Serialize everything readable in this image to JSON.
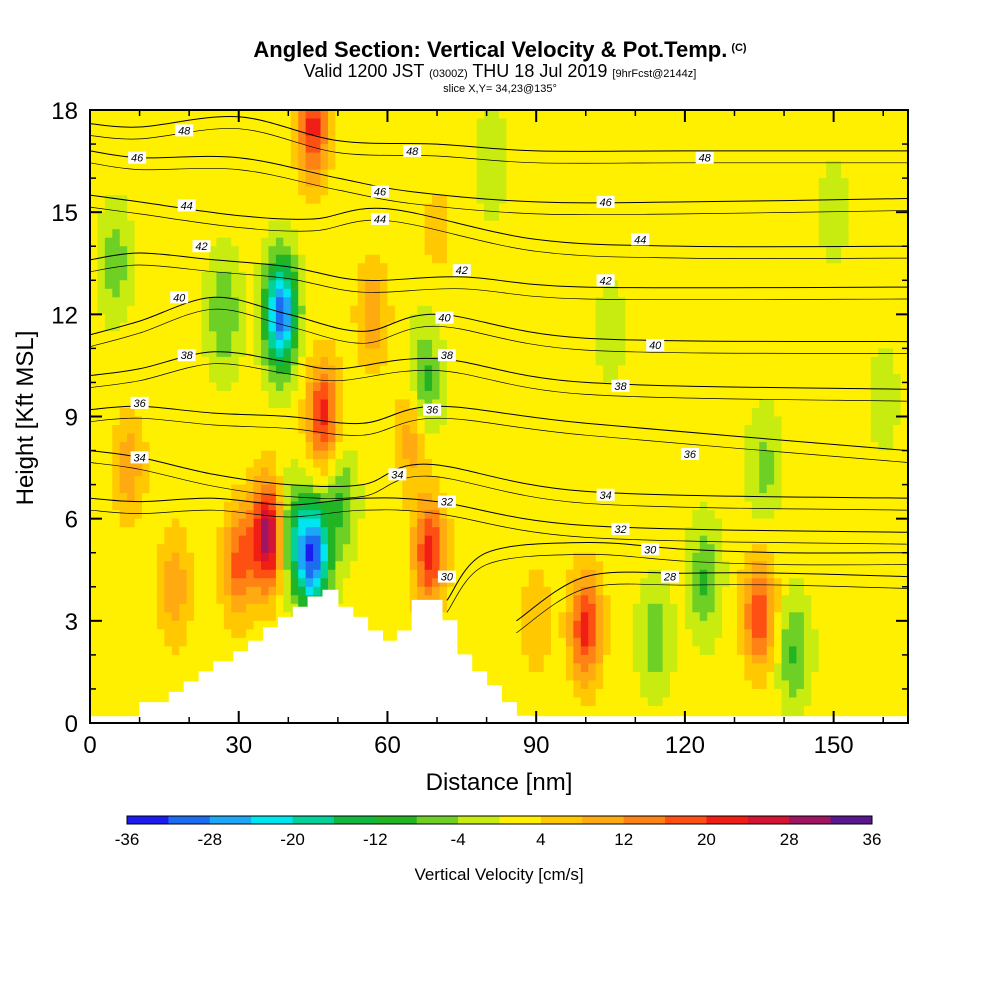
{
  "chart_data": {
    "type": "heatmap",
    "title": "Angled Section: Vertical Velocity & Pot.Temp.",
    "title_unit": "(C)",
    "subtitle_valid": "Valid 1200 JST",
    "subtitle_utc": "(0300Z)",
    "subtitle_date": "THU 18 Jul 2019",
    "subtitle_fcst": "[9hrFcst@2144z]",
    "slice_label": "slice X,Y= 34,23@135°",
    "xlabel": "Distance [nm]",
    "ylabel": "Height [Kft MSL]",
    "xlim": [
      0,
      165
    ],
    "ylim": [
      0,
      18
    ],
    "x_ticks": [
      0,
      30,
      60,
      90,
      120,
      150
    ],
    "y_ticks": [
      0,
      3,
      6,
      9,
      12,
      15,
      18
    ],
    "terrain": {
      "x": [
        10,
        10,
        16,
        16,
        19,
        19,
        22,
        22,
        25,
        25,
        29,
        29,
        32,
        32,
        35,
        35,
        38,
        38,
        41,
        41,
        44,
        44,
        47,
        47,
        50,
        50,
        53,
        53,
        56,
        56,
        59,
        59,
        62,
        62,
        65,
        65,
        71,
        71,
        74,
        74,
        77,
        77,
        80,
        80,
        83,
        83,
        86,
        86,
        89
      ],
      "y": [
        0,
        0.6,
        0.6,
        0.9,
        0.9,
        1.2,
        1.2,
        1.5,
        1.5,
        1.8,
        1.8,
        2.1,
        2.1,
        2.4,
        2.4,
        2.8,
        2.8,
        3.1,
        3.1,
        3.4,
        3.4,
        3.7,
        3.7,
        3.9,
        3.9,
        3.4,
        3.4,
        3.1,
        3.1,
        2.7,
        2.7,
        2.4,
        2.4,
        2.7,
        2.7,
        3.6,
        3.6,
        3.0,
        3.0,
        2.0,
        2.0,
        1.5,
        1.5,
        1.1,
        1.1,
        0.6,
        0.6,
        0.2,
        0.2
      ]
    },
    "color_scale": {
      "label": "Vertical Velocity [cm/s]",
      "tick_labels": [
        "-36",
        "-28",
        "-20",
        "-12",
        "-4",
        "4",
        "12",
        "20",
        "28",
        "36"
      ],
      "bins": [
        -36,
        -32,
        -28,
        -24,
        -20,
        -16,
        -12,
        -8,
        -4,
        0,
        4,
        8,
        12,
        16,
        20,
        24,
        28,
        32,
        36
      ],
      "colors": [
        "#1c1cf0",
        "#1c6cf2",
        "#1ca8f6",
        "#00e6f0",
        "#00d29a",
        "#10b840",
        "#23b424",
        "#6ed025",
        "#c8ec10",
        "#fff000",
        "#ffc800",
        "#ffaa10",
        "#ff8214",
        "#ff5014",
        "#f01e14",
        "#d41432",
        "#a01464",
        "#5a1890"
      ]
    },
    "features": [
      {
        "x": 0,
        "y": 0,
        "value": 0
      },
      {
        "x": 27,
        "y": 12.0,
        "value": -10
      },
      {
        "x": 38.5,
        "y": 12.0,
        "value": -33
      },
      {
        "x": 36,
        "y": 5.5,
        "value": 30
      },
      {
        "x": 45,
        "y": 4.9,
        "value": -33
      },
      {
        "x": 40.5,
        "y": 5.5,
        "value": -14
      },
      {
        "x": 47,
        "y": 9.0,
        "value": 20
      },
      {
        "x": 50.5,
        "y": 6.5,
        "value": -10
      },
      {
        "x": 57,
        "y": 12.0,
        "value": 10
      },
      {
        "x": 67.5,
        "y": 10.0,
        "value": -12
      },
      {
        "x": 65,
        "y": 8.5,
        "value": 10
      },
      {
        "x": 68.5,
        "y": 5.0,
        "value": 20
      },
      {
        "x": 30,
        "y": 4.7,
        "value": 16
      },
      {
        "x": 17,
        "y": 4.0,
        "value": 10
      },
      {
        "x": 100,
        "y": 2.8,
        "value": 20
      },
      {
        "x": 135,
        "y": 3.2,
        "value": 18
      },
      {
        "x": 124,
        "y": 4.2,
        "value": -10
      },
      {
        "x": 136,
        "y": 7.5,
        "value": -7
      },
      {
        "x": 142,
        "y": 2.1,
        "value": -10
      },
      {
        "x": 114,
        "y": 2.5,
        "value": -8
      },
      {
        "x": 45,
        "y": 17.5,
        "value": 20
      },
      {
        "x": 5,
        "y": 13.5,
        "value": -8
      },
      {
        "x": 8,
        "y": 7.5,
        "value": 9
      },
      {
        "x": 70,
        "y": 14.5,
        "value": 4
      },
      {
        "x": 81,
        "y": 16.5,
        "value": -5
      },
      {
        "x": 150,
        "y": 15.0,
        "value": -4
      },
      {
        "x": 105,
        "y": 11.5,
        "value": -4
      },
      {
        "x": 160,
        "y": 9.5,
        "value": -4
      },
      {
        "x": 90,
        "y": 3.0,
        "value": 6
      }
    ],
    "theta_contours": [
      {
        "value": 48,
        "x": [
          0,
          10,
          30,
          50,
          70,
          90,
          120,
          165
        ],
        "y": [
          17.6,
          17.5,
          17.8,
          17.1,
          17.0,
          16.8,
          16.8,
          16.8
        ]
      },
      {
        "value": 46,
        "x": [
          0,
          10,
          30,
          50,
          65,
          90,
          120,
          165
        ],
        "y": [
          16.8,
          16.6,
          16.6,
          16.0,
          15.6,
          15.3,
          15.3,
          15.4
        ]
      },
      {
        "value": 44,
        "x": [
          0,
          10,
          30,
          45,
          60,
          90,
          120,
          165
        ],
        "y": [
          15.5,
          15.3,
          14.9,
          14.8,
          15.1,
          14.2,
          14.0,
          14.0
        ]
      },
      {
        "value": 42,
        "x": [
          0,
          10,
          25,
          40,
          55,
          75,
          100,
          165
        ],
        "y": [
          13.6,
          13.8,
          13.6,
          13.4,
          13.0,
          13.1,
          12.8,
          12.8
        ]
      },
      {
        "value": 40,
        "x": [
          0,
          10,
          25,
          40,
          55,
          70,
          100,
          165
        ],
        "y": [
          11.4,
          11.8,
          12.5,
          12.0,
          11.5,
          12.0,
          11.3,
          11.2
        ]
      },
      {
        "value": 38,
        "x": [
          0,
          10,
          25,
          40,
          50,
          70,
          100,
          165
        ],
        "y": [
          10.2,
          10.4,
          10.9,
          10.6,
          10.4,
          10.7,
          10.0,
          9.8
        ]
      },
      {
        "value": 36,
        "x": [
          0,
          10,
          25,
          40,
          55,
          70,
          100,
          165
        ],
        "y": [
          9.2,
          9.3,
          9.1,
          9.0,
          8.8,
          9.3,
          8.8,
          8.0
        ]
      },
      {
        "value": 34,
        "x": [
          0,
          10,
          25,
          40,
          55,
          68,
          100,
          165
        ],
        "y": [
          8.0,
          7.8,
          7.3,
          7.0,
          7.0,
          7.6,
          6.8,
          6.6
        ]
      },
      {
        "value": 32,
        "x": [
          0,
          10,
          25,
          40,
          55,
          70,
          100,
          165
        ],
        "y": [
          6.6,
          6.5,
          6.6,
          6.4,
          6.6,
          6.5,
          5.8,
          5.6
        ]
      },
      {
        "value": 30,
        "x": [
          72,
          80,
          100,
          120,
          140,
          165
        ],
        "y": [
          3.6,
          5.0,
          5.3,
          5.1,
          5.0,
          5.0
        ]
      },
      {
        "value": 28,
        "x": [
          86,
          100,
          120,
          140,
          165
        ],
        "y": [
          3.0,
          4.3,
          4.4,
          4.4,
          4.3
        ]
      }
    ],
    "contour_labels": [
      {
        "text": "48",
        "x": 19,
        "y": 17.4
      },
      {
        "text": "48",
        "x": 65,
        "y": 16.8
      },
      {
        "text": "48",
        "x": 124,
        "y": 16.6
      },
      {
        "text": "46",
        "x": 9.5,
        "y": 16.6
      },
      {
        "text": "46",
        "x": 58.5,
        "y": 15.6
      },
      {
        "text": "46",
        "x": 104,
        "y": 15.3
      },
      {
        "text": "44",
        "x": 19.5,
        "y": 15.2
      },
      {
        "text": "44",
        "x": 58.5,
        "y": 14.8
      },
      {
        "text": "44",
        "x": 111,
        "y": 14.2
      },
      {
        "text": "42",
        "x": 22.5,
        "y": 14.0
      },
      {
        "text": "42",
        "x": 75,
        "y": 13.3
      },
      {
        "text": "42",
        "x": 104,
        "y": 13.0
      },
      {
        "text": "40",
        "x": 18,
        "y": 12.5
      },
      {
        "text": "40",
        "x": 71.5,
        "y": 11.9
      },
      {
        "text": "40",
        "x": 114,
        "y": 11.1
      },
      {
        "text": "38",
        "x": 19.5,
        "y": 10.8
      },
      {
        "text": "38",
        "x": 72,
        "y": 10.8
      },
      {
        "text": "38",
        "x": 107,
        "y": 9.9
      },
      {
        "text": "36",
        "x": 10,
        "y": 9.4
      },
      {
        "text": "36",
        "x": 69,
        "y": 9.2
      },
      {
        "text": "36",
        "x": 121,
        "y": 7.9
      },
      {
        "text": "34",
        "x": 10,
        "y": 7.8
      },
      {
        "text": "34",
        "x": 62,
        "y": 7.3
      },
      {
        "text": "34",
        "x": 104,
        "y": 6.7
      },
      {
        "text": "32",
        "x": 72,
        "y": 6.5
      },
      {
        "text": "32",
        "x": 107,
        "y": 5.7
      },
      {
        "text": "30",
        "x": 72,
        "y": 4.3
      },
      {
        "text": "30",
        "x": 113,
        "y": 5.1
      },
      {
        "text": "28",
        "x": 117,
        "y": 4.3
      }
    ]
  }
}
